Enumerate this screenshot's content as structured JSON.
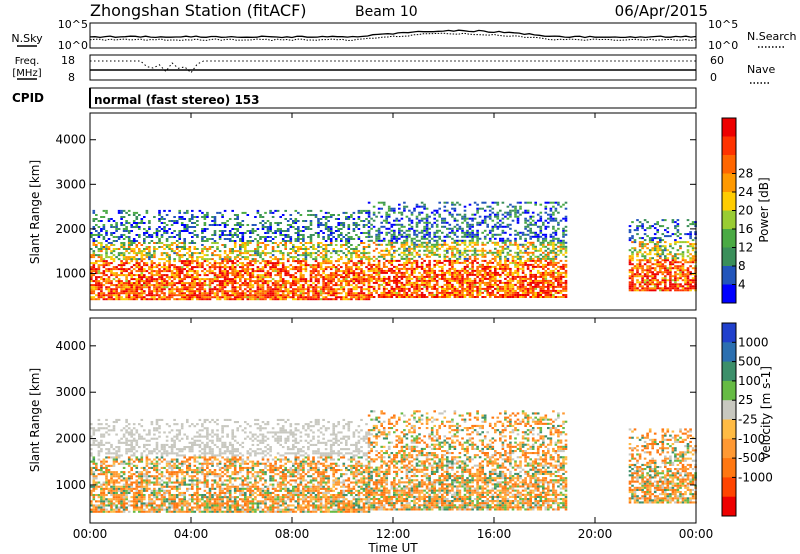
{
  "header": {
    "station": "Zhongshan Station (fitACF)",
    "beam": "Beam 10",
    "date": "06/Apr/2015",
    "cpid_label": "CPID",
    "cpid_text": "normal (fast stereo) 153"
  },
  "noise_panel": {
    "left_label": "N.Sky",
    "right_label": "N.Search",
    "ytick_top": "10^5",
    "ytick_bottom": "10^0",
    "right_tick_top": "10^5",
    "right_tick_bottom": "10^0"
  },
  "freq_panel": {
    "left_label_1": "Freq.",
    "left_label_2": "[MHz]",
    "left_tick_top": "18",
    "left_tick_bottom": "8",
    "right_label": "Nave",
    "right_tick_top": "60",
    "right_tick_bottom": "0"
  },
  "chart_data": [
    {
      "type": "heatmap",
      "title": "",
      "quantity": "Power",
      "xlabel": "",
      "ylabel": "Slant Range [km]",
      "ylim": [
        180,
        4600
      ],
      "yticks": [
        "1000",
        "2000",
        "3000",
        "4000"
      ],
      "colorbar_label": "Power [dB]",
      "colorbar_ticks": [
        "4",
        "8",
        "12",
        "16",
        "20",
        "24",
        "28"
      ],
      "colorscale": [
        "#0000ff",
        "#2255bb",
        "#3a8f5a",
        "#4aaa44",
        "#99cc33",
        "#ffcc00",
        "#ff9900",
        "#ff6600",
        "#ff3300",
        "#ee0000"
      ],
      "range_bands_km": [
        {
          "start_ut": "00:00",
          "end_ut": "11:00",
          "range_km": [
            400,
            2400
          ]
        },
        {
          "start_ut": "11:00",
          "end_ut": "18:50",
          "range_km": [
            450,
            2600
          ]
        },
        {
          "start_ut": "21:20",
          "end_ut": "24:00",
          "range_km": [
            600,
            2200
          ]
        }
      ]
    },
    {
      "type": "heatmap",
      "title": "",
      "quantity": "Velocity",
      "xlabel": "Time UT",
      "ylabel": "Slant Range [km]",
      "ylim": [
        180,
        4600
      ],
      "yticks": [
        "1000",
        "2000",
        "3000",
        "4000"
      ],
      "xticks": [
        "00:00",
        "04:00",
        "08:00",
        "12:00",
        "16:00",
        "20:00",
        "00:00"
      ],
      "colorbar_label": "Velocity [m s-1]",
      "colorbar_ticks": [
        "1000",
        "500",
        "100",
        "25",
        "-25",
        "-100",
        "-500",
        "-1000"
      ],
      "colorscale": [
        "#2040cc",
        "#2b6fb0",
        "#3c8f6a",
        "#66bb44",
        "#c8c8c0",
        "#ffbb44",
        "#ff9933",
        "#ff7711",
        "#ff4400",
        "#ee0000"
      ]
    }
  ],
  "colors": {
    "axis": "#000000",
    "background": "#ffffff"
  }
}
